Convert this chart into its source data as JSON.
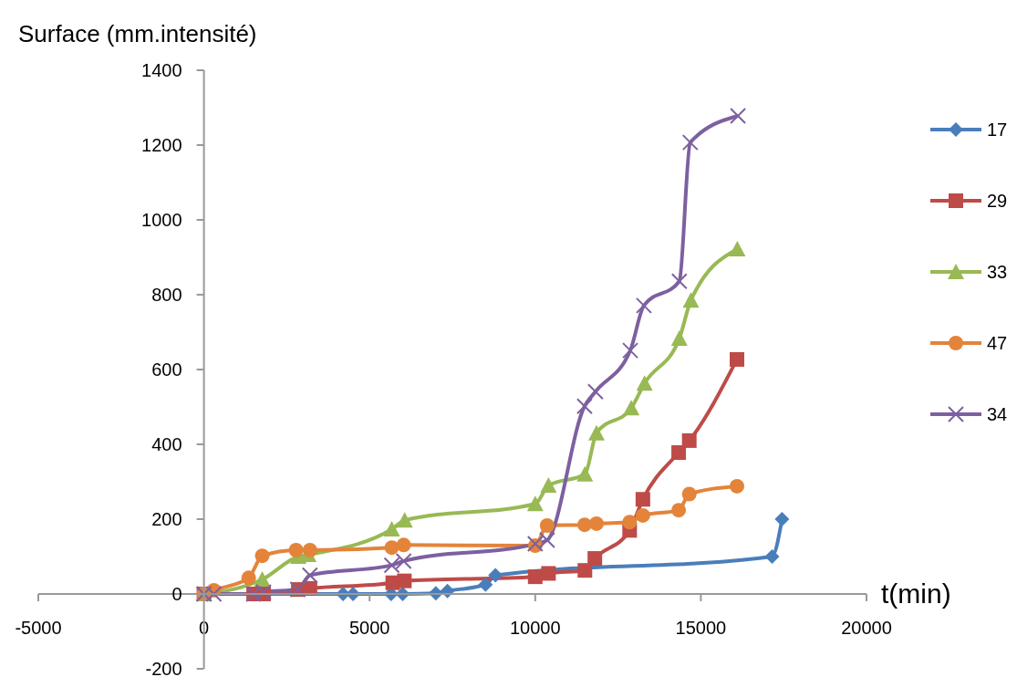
{
  "chart_data": {
    "type": "line",
    "xlabel": "t(min)",
    "ylabel": "Surface (mm.intensité)",
    "xlim": [
      -5000,
      20000
    ],
    "xticks": [
      -5000,
      0,
      5000,
      10000,
      15000,
      20000
    ],
    "ylim": [
      -200,
      1400
    ],
    "yticks": [
      -200,
      0,
      200,
      400,
      600,
      800,
      1000,
      1200,
      1400
    ],
    "grid": false,
    "legend": "right",
    "line_style": "solid",
    "series": [
      {
        "name": "17",
        "color": "#4a7ebb",
        "marker": "diamond",
        "x": [
          0,
          4200,
          4500,
          5650,
          6000,
          7000,
          7350,
          8500,
          8800,
          17150,
          17450
        ],
        "values": [
          0,
          0,
          0,
          0,
          0,
          2,
          8,
          25,
          50,
          100,
          200
        ]
      },
      {
        "name": "29",
        "color": "#be4b48",
        "marker": "square",
        "x": [
          0,
          1500,
          1800,
          2850,
          3200,
          5700,
          6050,
          10000,
          10400,
          11500,
          11800,
          12850,
          13250,
          14330,
          14650,
          16090
        ],
        "values": [
          0,
          0,
          0,
          12,
          15,
          30,
          35,
          46,
          55,
          63,
          95,
          170,
          253,
          378,
          410,
          627
        ]
      },
      {
        "name": "33",
        "color": "#98b954",
        "marker": "triangle",
        "x": [
          0,
          1760,
          2850,
          3150,
          5670,
          6060,
          10000,
          10400,
          11500,
          11850,
          12900,
          13300,
          14350,
          14700,
          16100
        ],
        "values": [
          0,
          39,
          100,
          105,
          173,
          197,
          241,
          290,
          320,
          430,
          497,
          563,
          683,
          785,
          922
        ]
      },
      {
        "name": "47",
        "color": "#e3843a",
        "marker": "circle",
        "x": [
          0,
          300,
          1350,
          1760,
          2780,
          3200,
          5670,
          6030,
          10000,
          10360,
          11490,
          11850,
          12850,
          13250,
          14330,
          14650,
          16090
        ],
        "values": [
          0,
          10,
          43,
          102,
          117,
          117,
          124,
          131,
          129,
          183,
          185,
          188,
          192,
          210,
          224,
          267,
          288
        ]
      },
      {
        "name": "34",
        "color": "#7d60a0",
        "marker": "cross",
        "x": [
          0,
          300,
          1500,
          1800,
          2830,
          3200,
          5670,
          6030,
          10000,
          10360,
          11490,
          11820,
          12870,
          13280,
          14350,
          14680,
          16120
        ],
        "values": [
          0,
          0,
          0,
          5,
          12,
          50,
          77,
          88,
          134,
          144,
          502,
          541,
          651,
          771,
          836,
          1207,
          1278
        ]
      }
    ]
  }
}
